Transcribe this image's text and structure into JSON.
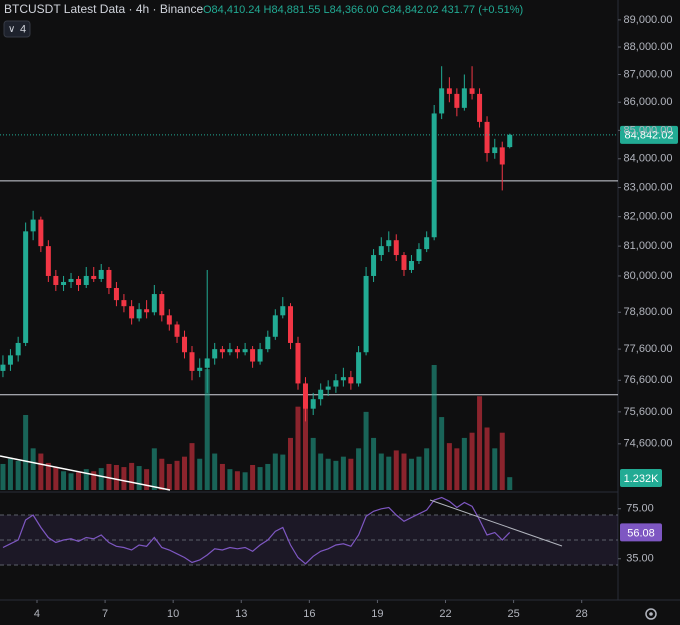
{
  "header": {
    "symbol": "BTCUSDT Latest Data · 4h · Binance",
    "ohlc": "O84,410.24 H84,881.55 L84,366.00 C84,842.02 431.77 (+0.51%)",
    "indicators": "4"
  },
  "chart_data": {
    "type": "candlestick",
    "x": [
      2.5,
      2.83,
      3.17,
      3.5,
      3.83,
      4.17,
      4.5,
      4.83,
      5.17,
      5.5,
      5.83,
      6.17,
      6.5,
      6.83,
      7.17,
      7.5,
      7.83,
      8.17,
      8.5,
      8.83,
      9.17,
      9.5,
      9.83,
      10.17,
      10.5,
      10.83,
      11.17,
      11.5,
      11.83,
      12.17,
      12.5,
      12.83,
      13.17,
      13.5,
      13.83,
      14.17,
      14.5,
      14.83,
      15.17,
      15.5,
      15.83,
      16.17,
      16.5,
      16.83,
      17.17,
      17.5,
      17.83,
      18.17,
      18.5,
      18.83,
      19.17,
      19.5,
      19.83,
      20.17,
      20.5,
      20.83,
      21.17,
      21.5,
      21.83,
      22.17,
      22.5,
      22.83,
      23.17,
      23.5,
      23.83,
      24.17,
      24.5,
      24.83
    ],
    "open": [
      76900,
      77100,
      77400,
      77800,
      81500,
      81900,
      81000,
      80000,
      79700,
      79800,
      79900,
      79700,
      80000,
      79900,
      80200,
      79600,
      79200,
      79000,
      78600,
      78900,
      78800,
      79400,
      78700,
      78400,
      78000,
      77500,
      76900,
      77000,
      77300,
      77600,
      77500,
      77600,
      77500,
      77600,
      77200,
      77600,
      78000,
      78700,
      79000,
      77800,
      76500,
      75700,
      76000,
      76300,
      76400,
      76600,
      76700,
      76500,
      77500,
      80000,
      80700,
      81000,
      81200,
      80700,
      80200,
      80500,
      80900,
      81300,
      85600,
      86500,
      86300,
      85800,
      86500,
      86300,
      85300,
      84200,
      84400,
      84410.24
    ],
    "high": [
      77400,
      77600,
      78000,
      81800,
      82200,
      82000,
      81200,
      80200,
      80000,
      80100,
      80000,
      80300,
      80300,
      80400,
      80300,
      79800,
      79400,
      79200,
      79100,
      79200,
      79700,
      79500,
      78900,
      78500,
      78200,
      77700,
      77300,
      80200,
      77800,
      77700,
      77800,
      77700,
      77800,
      77700,
      77800,
      78200,
      78900,
      79300,
      79100,
      78000,
      76700,
      76200,
      76500,
      76600,
      76800,
      77000,
      76900,
      77700,
      80300,
      80900,
      81300,
      81500,
      81400,
      80800,
      80700,
      81100,
      81500,
      85900,
      87300,
      86900,
      86500,
      87000,
      87300,
      86500,
      85500,
      84700,
      84600,
      84881.55
    ],
    "low": [
      76700,
      76900,
      77200,
      77700,
      81200,
      80800,
      79800,
      79500,
      79500,
      79600,
      79500,
      79600,
      79800,
      79800,
      79400,
      79000,
      78800,
      78400,
      78500,
      78600,
      78700,
      78500,
      78200,
      77800,
      77300,
      76600,
      76700,
      76200,
      77100,
      77300,
      77400,
      77300,
      77400,
      77000,
      77100,
      77500,
      77900,
      78600,
      77600,
      76300,
      75300,
      75500,
      75800,
      76100,
      76200,
      76400,
      76300,
      76400,
      77400,
      79800,
      80500,
      80800,
      80500,
      80000,
      80100,
      80400,
      80800,
      81200,
      85400,
      86000,
      85500,
      85700,
      86100,
      85100,
      83900,
      84000,
      82900,
      84366
    ],
    "close": [
      77100,
      77400,
      77800,
      81500,
      81900,
      81000,
      80000,
      79700,
      79800,
      79900,
      79700,
      80000,
      79900,
      80200,
      79600,
      79200,
      79000,
      78600,
      78900,
      78800,
      79400,
      78700,
      78400,
      78000,
      77500,
      76900,
      77000,
      77300,
      77600,
      77500,
      77600,
      77500,
      77600,
      77200,
      77600,
      78000,
      78700,
      79000,
      77800,
      76500,
      75700,
      76000,
      76300,
      76400,
      76600,
      76700,
      76500,
      77500,
      80000,
      80700,
      81000,
      81200,
      80700,
      80200,
      80500,
      80900,
      81300,
      85600,
      86500,
      86300,
      85800,
      86500,
      86300,
      85300,
      84200,
      84400,
      83800,
      84842.02
    ],
    "last_label": "84,842.02",
    "xlim": [
      2.37,
      29.6
    ],
    "xticks": [
      4,
      7,
      10,
      13,
      16,
      19,
      22,
      25,
      28
    ],
    "ylim": [
      73180,
      89740
    ],
    "log_scale": true,
    "yticks": [
      {
        "value": 89000,
        "label": "89,000.00"
      },
      {
        "value": 88000,
        "label": "88,000.00"
      },
      {
        "value": 87000,
        "label": "87,000.00"
      },
      {
        "value": 86000,
        "label": "86,000.00"
      },
      {
        "value": 85000,
        "label": "85,000.00"
      },
      {
        "value": 84000,
        "label": "84,000.00"
      },
      {
        "value": 83000,
        "label": "83,000.00"
      },
      {
        "value": 82000,
        "label": "82,000.00"
      },
      {
        "value": 81000,
        "label": "81,000.00"
      },
      {
        "value": 80000,
        "label": "80,000.00"
      },
      {
        "value": 78800,
        "label": "78,800.00"
      },
      {
        "value": 77600,
        "label": "77,600.00"
      },
      {
        "value": 76600,
        "label": "76,600.00"
      },
      {
        "value": 75600,
        "label": "75,600.00"
      },
      {
        "value": 74600,
        "label": "74,600.00"
      }
    ],
    "up_color": "#22ab94",
    "down_color": "#f23645",
    "levels": [
      83230,
      76140
    ],
    "volume": {
      "values": [
        2500,
        3000,
        2800,
        7200,
        4000,
        3500,
        2600,
        2200,
        1800,
        1600,
        1700,
        2000,
        1800,
        2100,
        2500,
        2400,
        2200,
        2600,
        2300,
        2000,
        4000,
        3000,
        2500,
        2800,
        3200,
        4500,
        3000,
        11600,
        3500,
        2500,
        2000,
        1800,
        1700,
        2400,
        2200,
        2500,
        3500,
        3400,
        5000,
        8000,
        9500,
        5000,
        3500,
        3000,
        2800,
        3200,
        3000,
        4000,
        7500,
        5000,
        3500,
        3200,
        3800,
        3500,
        3000,
        3200,
        4000,
        12000,
        7000,
        4500,
        4000,
        5000,
        5500,
        9000,
        6000,
        4000,
        5500,
        1232
      ],
      "value_label": "1.232K"
    },
    "rsi": {
      "values": [
        44,
        47,
        50,
        66,
        70,
        60,
        52,
        48,
        50,
        51,
        49,
        52,
        51,
        54,
        48,
        45,
        44,
        42,
        46,
        45,
        52,
        44,
        42,
        39,
        36,
        32,
        34,
        38,
        43,
        42,
        44,
        43,
        44,
        41,
        46,
        50,
        57,
        60,
        46,
        36,
        31,
        37,
        41,
        43,
        46,
        47,
        45,
        54,
        69,
        73,
        75,
        76,
        70,
        65,
        68,
        71,
        74,
        82,
        84,
        81,
        76,
        80,
        77,
        66,
        54,
        56,
        50,
        56.08
      ],
      "ylim": [
        10,
        87.6
      ],
      "yticks": [
        {
          "value": 75,
          "label": "75.00"
        },
        {
          "value": 35,
          "label": "35.00"
        }
      ],
      "bands": [
        70,
        50,
        30
      ],
      "color": "#7e57c2"
    }
  }
}
